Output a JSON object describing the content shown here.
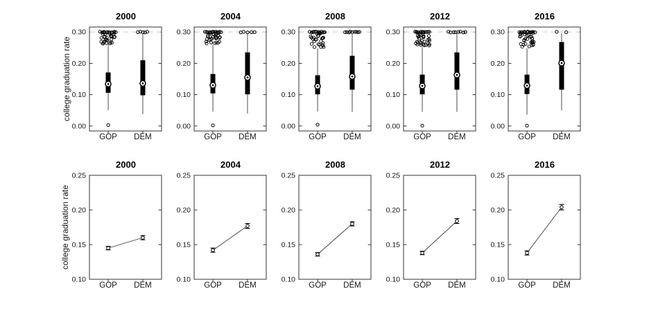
{
  "figure": {
    "background": "#ffffff",
    "line_color": "#000000",
    "whisker_color": "#3a3a3a",
    "ref_line_color": "#d9d9d9",
    "text_color": "#161616"
  },
  "chart_data": [
    {
      "type": "boxplot",
      "row": "top",
      "ylabel": "college graduation rate",
      "ylim": [
        -0.016,
        0.316
      ],
      "ref_line": 0.3,
      "grid": false,
      "yticks": [
        {
          "value": 0.0,
          "label": "0.00"
        },
        {
          "value": 0.1,
          "label": "0.10"
        },
        {
          "value": 0.2,
          "label": "0.20"
        },
        {
          "value": 0.3,
          "label": "0.30"
        }
      ],
      "categories": [
        "GOP",
        "DEM"
      ],
      "panels": [
        {
          "title": "2000",
          "boxes": [
            {
              "category": "GOP",
              "whisker_low": 0.05,
              "q1": 0.106,
              "median": 0.134,
              "q3": 0.171,
              "whisker_high": 0.262,
              "low_outliers": [
                0.003
              ],
              "top_cluster": {
                "count": 14,
                "y": 0.3,
                "x_spread": 11
              },
              "cloud": {
                "count": 30,
                "y_min": 0.262,
                "y_max": 0.297
              }
            },
            {
              "category": "DEM",
              "whisker_low": 0.038,
              "q1": 0.098,
              "median": 0.136,
              "q3": 0.21,
              "whisker_high": 0.296,
              "low_outliers": [],
              "top_cluster": {
                "count": 5,
                "y": 0.3,
                "x_spread": 7
              },
              "cloud": {
                "count": 0,
                "y_min": 0,
                "y_max": 0
              }
            }
          ]
        },
        {
          "title": "2004",
          "boxes": [
            {
              "category": "GOP",
              "whisker_low": 0.046,
              "q1": 0.104,
              "median": 0.13,
              "q3": 0.166,
              "whisker_high": 0.258,
              "low_outliers": [
                0.002
              ],
              "top_cluster": {
                "count": 14,
                "y": 0.3,
                "x_spread": 11
              },
              "cloud": {
                "count": 28,
                "y_min": 0.26,
                "y_max": 0.297
              }
            },
            {
              "category": "DEM",
              "whisker_low": 0.04,
              "q1": 0.101,
              "median": 0.155,
              "q3": 0.235,
              "whisker_high": 0.296,
              "low_outliers": [],
              "top_cluster": {
                "count": 5,
                "y": 0.3,
                "x_spread": 10
              },
              "cloud": {
                "count": 0,
                "y_min": 0,
                "y_max": 0
              }
            }
          ]
        },
        {
          "title": "2008",
          "boxes": [
            {
              "category": "GOP",
              "whisker_low": 0.046,
              "q1": 0.101,
              "median": 0.127,
              "q3": 0.162,
              "whisker_high": 0.248,
              "low_outliers": [
                0.004
              ],
              "top_cluster": {
                "count": 13,
                "y": 0.3,
                "x_spread": 11
              },
              "cloud": {
                "count": 26,
                "y_min": 0.252,
                "y_max": 0.297
              }
            },
            {
              "category": "DEM",
              "whisker_low": 0.045,
              "q1": 0.116,
              "median": 0.158,
              "q3": 0.224,
              "whisker_high": 0.296,
              "low_outliers": [],
              "top_cluster": {
                "count": 9,
                "y": 0.3,
                "x_spread": 11
              },
              "cloud": {
                "count": 0,
                "y_min": 0,
                "y_max": 0
              }
            }
          ]
        },
        {
          "title": "2012",
          "boxes": [
            {
              "category": "GOP",
              "whisker_low": 0.045,
              "q1": 0.101,
              "median": 0.128,
              "q3": 0.164,
              "whisker_high": 0.252,
              "low_outliers": [
                0.001
              ],
              "top_cluster": {
                "count": 13,
                "y": 0.3,
                "x_spread": 11
              },
              "cloud": {
                "count": 28,
                "y_min": 0.255,
                "y_max": 0.297
              }
            },
            {
              "category": "DEM",
              "whisker_low": 0.045,
              "q1": 0.116,
              "median": 0.163,
              "q3": 0.235,
              "whisker_high": 0.296,
              "low_outliers": [],
              "top_cluster": {
                "count": 8,
                "y": 0.3,
                "x_spread": 12
              },
              "cloud": {
                "count": 0,
                "y_min": 0,
                "y_max": 0
              }
            }
          ]
        },
        {
          "title": "2016",
          "boxes": [
            {
              "category": "GOP",
              "whisker_low": 0.036,
              "q1": 0.102,
              "median": 0.129,
              "q3": 0.164,
              "whisker_high": 0.248,
              "low_outliers": [
                0.001
              ],
              "top_cluster": {
                "count": 13,
                "y": 0.3,
                "x_spread": 11
              },
              "cloud": {
                "count": 30,
                "y_min": 0.252,
                "y_max": 0.297
              }
            },
            {
              "category": "DEM",
              "whisker_low": 0.05,
              "q1": 0.116,
              "median": 0.201,
              "q3": 0.268,
              "whisker_high": 0.296,
              "low_outliers": [],
              "top_cluster": {
                "count": 2,
                "y": 0.3,
                "x_spread": 7
              },
              "cloud": {
                "count": 0,
                "y_min": 0,
                "y_max": 0
              }
            }
          ]
        }
      ]
    },
    {
      "type": "line",
      "row": "bottom",
      "ylabel": "college graduation rate",
      "ylim": [
        0.1,
        0.25
      ],
      "grid": false,
      "yticks": [
        {
          "value": 0.1,
          "label": "0.10"
        },
        {
          "value": 0.15,
          "label": "0.15"
        },
        {
          "value": 0.2,
          "label": "0.20"
        },
        {
          "value": 0.25,
          "label": "0.25"
        }
      ],
      "categories": [
        "GOP",
        "DEM"
      ],
      "panels": [
        {
          "title": "2000",
          "points": [
            {
              "category": "GOP",
              "mean": 0.145,
              "se": 0.0025
            },
            {
              "category": "DEM",
              "mean": 0.16,
              "se": 0.003
            }
          ]
        },
        {
          "title": "2004",
          "points": [
            {
              "category": "GOP",
              "mean": 0.142,
              "se": 0.003
            },
            {
              "category": "DEM",
              "mean": 0.177,
              "se": 0.0035
            }
          ]
        },
        {
          "title": "2008",
          "points": [
            {
              "category": "GOP",
              "mean": 0.136,
              "se": 0.0025
            },
            {
              "category": "DEM",
              "mean": 0.18,
              "se": 0.003
            }
          ]
        },
        {
          "title": "2012",
          "points": [
            {
              "category": "GOP",
              "mean": 0.138,
              "se": 0.0025
            },
            {
              "category": "DEM",
              "mean": 0.184,
              "se": 0.0035
            }
          ]
        },
        {
          "title": "2016",
          "points": [
            {
              "category": "GOP",
              "mean": 0.138,
              "se": 0.003
            },
            {
              "category": "DEM",
              "mean": 0.204,
              "se": 0.004
            }
          ]
        }
      ]
    }
  ]
}
